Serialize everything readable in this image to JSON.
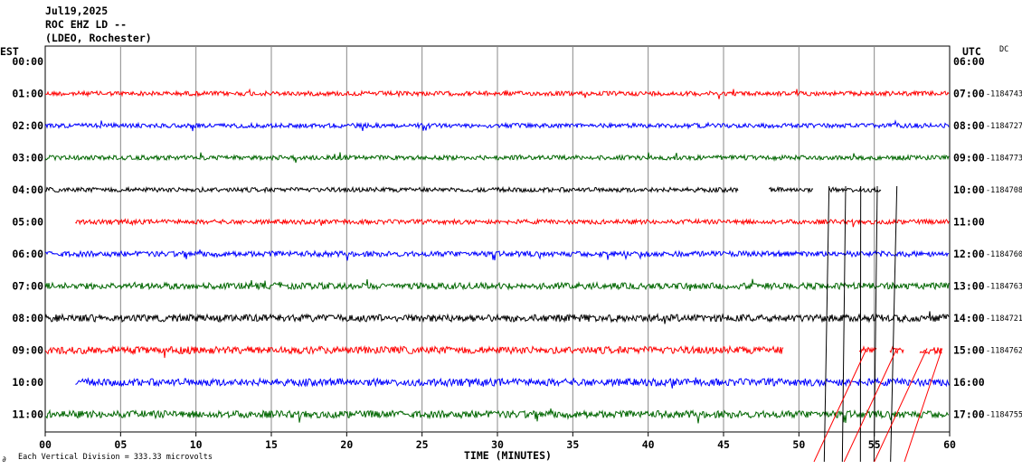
{
  "header": {
    "date": "Jul19,2025",
    "station": "ROC EHZ LD --",
    "network": "(LDEO, Rochester)"
  },
  "left_axis_label": "EST",
  "right_axis_label": "UTC",
  "dc_label": "DC",
  "footer": {
    "xlabel": "TIME (MINUTES)",
    "scale_note": "Each Vertical Division = 333.33 microvolts",
    "mark": "∂"
  },
  "chart_data": {
    "type": "line",
    "title": "",
    "xlabel": "TIME (MINUTES)",
    "xlim": [
      0,
      60
    ],
    "x_ticks": [
      "00",
      "05",
      "10",
      "15",
      "20",
      "25",
      "30",
      "35",
      "40",
      "45",
      "50",
      "55",
      "60"
    ],
    "grid": "vertical lines every 5 minutes",
    "rows": [
      {
        "est": "00:00",
        "utc": "06:00",
        "dc": "",
        "color": "#ff0000",
        "start": null,
        "end": null,
        "gaps": [],
        "amplitude": 0
      },
      {
        "est": "01:00",
        "utc": "07:00",
        "dc": "-1184743",
        "color": "#ff0000",
        "start": 0,
        "end": 60,
        "gaps": [],
        "amplitude": 2.5
      },
      {
        "est": "02:00",
        "utc": "08:00",
        "dc": "-1184727",
        "color": "#0000ff",
        "start": 0,
        "end": 60,
        "gaps": [],
        "amplitude": 2.5
      },
      {
        "est": "03:00",
        "utc": "09:00",
        "dc": "-1184773",
        "color": "#006600",
        "start": 0,
        "end": 60,
        "gaps": [],
        "amplitude": 2.5
      },
      {
        "est": "04:00",
        "utc": "10:00",
        "dc": "-1184708",
        "color": "#000000",
        "start": 0,
        "end": 55.5,
        "gaps": [
          [
            46,
            48
          ],
          [
            51,
            52
          ]
        ],
        "amplitude": 2.5
      },
      {
        "est": "05:00",
        "utc": "11:00",
        "dc": "",
        "color": "#ff0000",
        "start": 2,
        "end": 60,
        "gaps": [],
        "amplitude": 2.5
      },
      {
        "est": "06:00",
        "utc": "12:00",
        "dc": "-1184760",
        "color": "#0000ff",
        "start": 0,
        "end": 60,
        "gaps": [],
        "amplitude": 3
      },
      {
        "est": "07:00",
        "utc": "13:00",
        "dc": "-1184763",
        "color": "#006600",
        "start": 0,
        "end": 60,
        "gaps": [],
        "amplitude": 3.5
      },
      {
        "est": "08:00",
        "utc": "14:00",
        "dc": "-1184721",
        "color": "#000000",
        "start": 0,
        "end": 60,
        "gaps": [],
        "amplitude": 4
      },
      {
        "est": "09:00",
        "utc": "15:00",
        "dc": "-1184762",
        "color": "#ff0000",
        "start": 0,
        "end": 59.5,
        "gaps": [
          [
            49,
            54
          ],
          [
            55.2,
            56
          ],
          [
            57,
            58
          ]
        ],
        "amplitude": 4
      },
      {
        "est": "10:00",
        "utc": "16:00",
        "dc": "",
        "color": "#0000ff",
        "start": 2,
        "end": 60,
        "gaps": [],
        "amplitude": 4
      },
      {
        "est": "11:00",
        "utc": "17:00",
        "dc": "-1184755",
        "color": "#006600",
        "start": 0,
        "end": 60,
        "gaps": [],
        "amplitude": 4
      }
    ]
  }
}
